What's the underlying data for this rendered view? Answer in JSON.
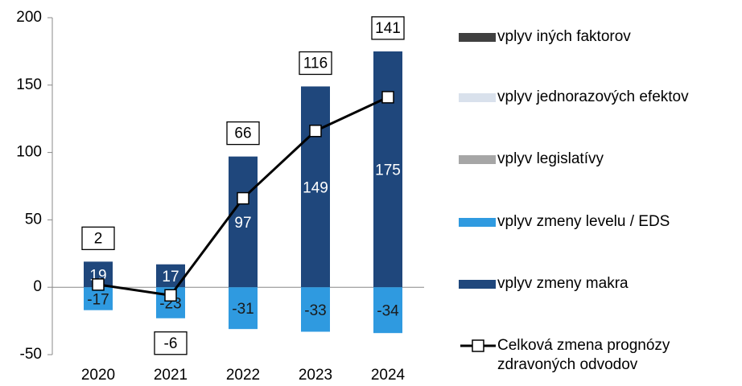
{
  "chart_data": {
    "type": "bar",
    "categories": [
      "2020",
      "2021",
      "2022",
      "2023",
      "2024"
    ],
    "ylim": [
      -50,
      200
    ],
    "yticks": [
      -50,
      0,
      50,
      100,
      150,
      200
    ],
    "stacked": true,
    "series": [
      {
        "name": "vplyv iných faktorov",
        "color": "#404040",
        "values": [
          null,
          null,
          null,
          null,
          null
        ]
      },
      {
        "name": "vplyv jednorazových efektov",
        "color": "#d9e1ec",
        "values": [
          null,
          null,
          null,
          null,
          null
        ]
      },
      {
        "name": "vplyv legislatívy",
        "color": "#a6a6a6",
        "values": [
          null,
          null,
          null,
          null,
          null
        ]
      },
      {
        "name": "vplyv zmeny levelu / EDS",
        "color": "#2f9ae0",
        "values": [
          -17,
          -23,
          -31,
          -33,
          -34
        ]
      },
      {
        "name": "vplyv zmeny makra",
        "color": "#1f477c",
        "values": [
          19,
          17,
          97,
          149,
          175
        ]
      },
      {
        "name": "Celková zmena prognózy zdravoných odvodov",
        "type": "line",
        "color": "#000000",
        "values": [
          2,
          -6,
          66,
          116,
          141
        ]
      }
    ]
  }
}
